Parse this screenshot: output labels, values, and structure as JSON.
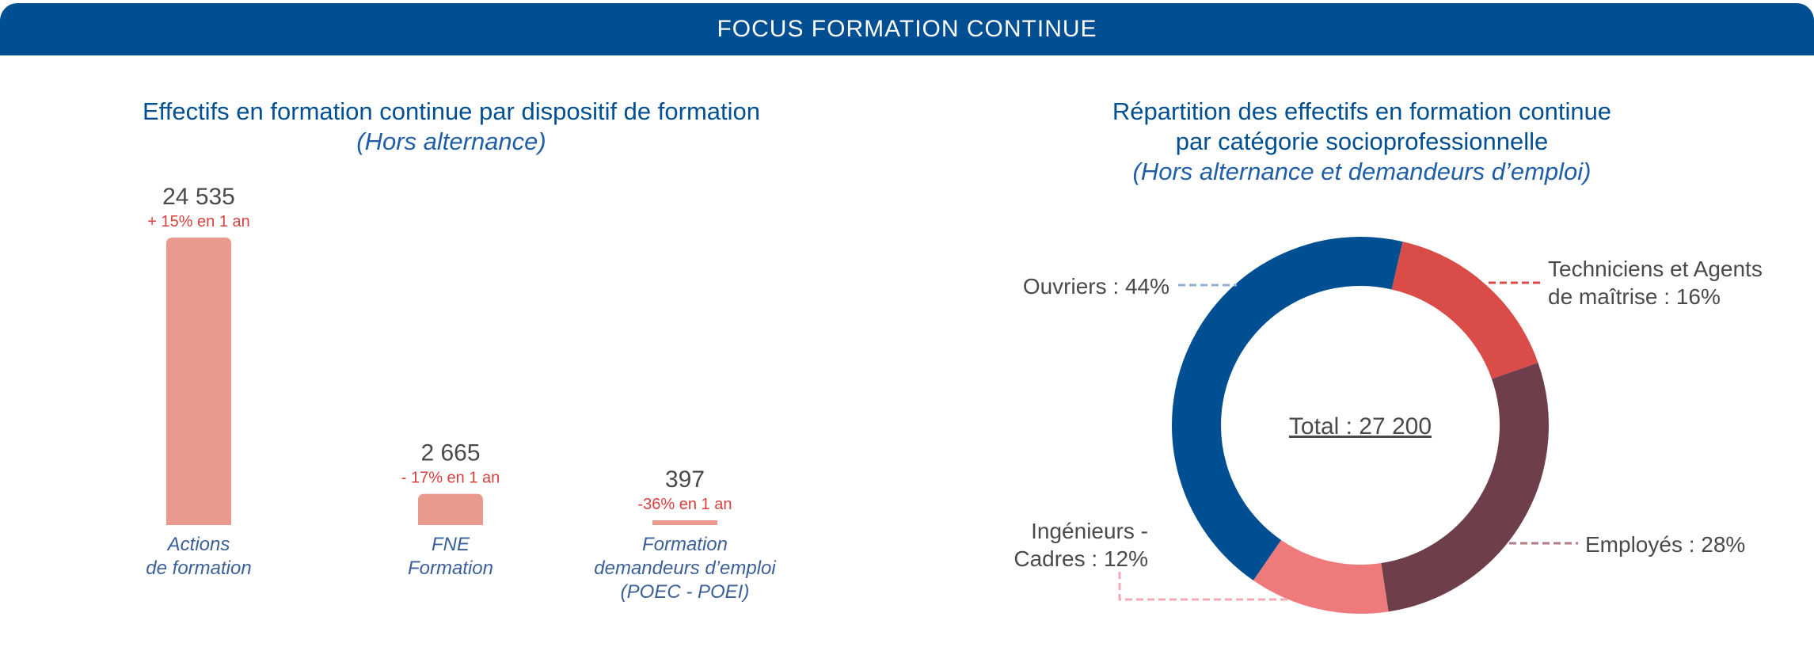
{
  "header": {
    "title": "FOCUS FORMATION CONTINUE"
  },
  "colors": {
    "banner": "#004f93",
    "bar": "#e99a8c",
    "change": "#d8413e"
  },
  "chart_data": [
    {
      "type": "bar",
      "title": "Effectifs en formation continue par dispositif de formation",
      "subtitle": "(Hors alternance)",
      "categories": [
        [
          "Actions",
          "de formation"
        ],
        [
          "FNE",
          "Formation"
        ],
        [
          "Formation",
          "demandeurs d’emploi",
          "(POEC - POEI)"
        ]
      ],
      "values": [
        24535,
        2665,
        397
      ],
      "value_labels": [
        "24 535",
        "2 665",
        "397"
      ],
      "change_labels": [
        "+ 15% en 1 an",
        "- 17% en 1 an",
        "-36% en 1 an"
      ],
      "ylim": [
        0,
        24535
      ]
    },
    {
      "type": "pie",
      "title_lines": [
        "Répartition des effectifs en formation continue",
        "par catégorie socioprofessionnelle"
      ],
      "subtitle": "(Hors alternance et demandeurs d’emploi)",
      "center_label": "Total : 27 200",
      "slices": [
        {
          "name": "Techniciens et Agents de maîtrise",
          "value": 16,
          "label_lines": [
            "Techniciens et Agents",
            "de maîtrise : 16%"
          ],
          "color": "#d94c48",
          "line_color": "#d94c48"
        },
        {
          "name": "Employés",
          "value": 28,
          "label_lines": [
            "Employés : 28%"
          ],
          "color": "#6e3f4a",
          "line_color": "#b07c86"
        },
        {
          "name": "Ingénieurs - Cadres",
          "value": 12,
          "label_lines": [
            "Ingénieurs -",
            "Cadres : 12%"
          ],
          "color": "#ef7a7b",
          "line_color": "#f4aab4"
        },
        {
          "name": "Ouvriers",
          "value": 44,
          "label_lines": [
            "Ouvriers : 44%"
          ],
          "color": "#004f93",
          "line_color": "#8fb0d6"
        }
      ]
    }
  ]
}
